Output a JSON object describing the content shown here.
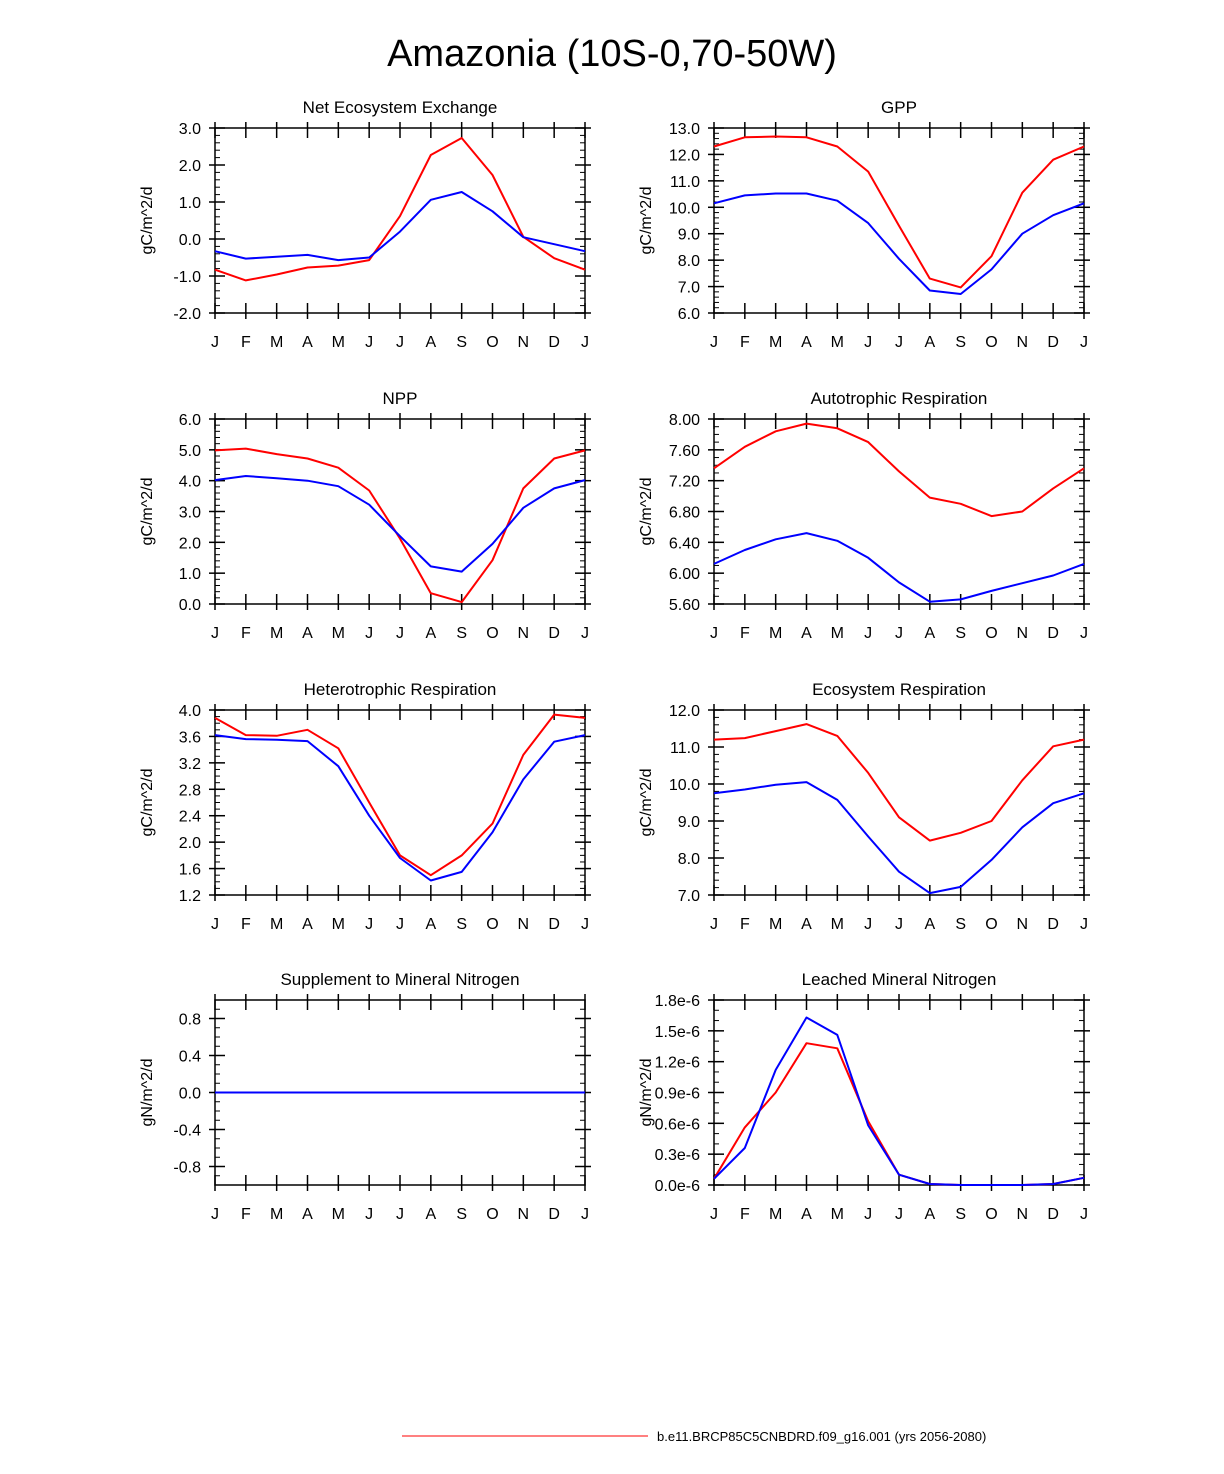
{
  "title": "Amazonia (10S-0,70-50W)",
  "months": [
    "J",
    "F",
    "M",
    "A",
    "M",
    "J",
    "J",
    "A",
    "S",
    "O",
    "N",
    "D",
    "J"
  ],
  "colors": {
    "series1": "#ff0000",
    "series2": "#0000ff",
    "axis": "#000000"
  },
  "legend": {
    "label": "b.e11.BRCP85C5CNBDRD.f09_g16.001 (yrs 2056-2080)"
  },
  "chart_data": [
    {
      "type": "line",
      "title": "Net Ecosystem Exchange",
      "ylabel": "gC/m^2/d",
      "ylim": [
        -2.0,
        3.0
      ],
      "yticks": [
        "-2.0",
        "-1.0",
        "0.0",
        "1.0",
        "2.0",
        "3.0"
      ],
      "ytick_values": [
        -2.0,
        -1.0,
        0.0,
        1.0,
        2.0,
        3.0
      ],
      "minor_step": 0.2,
      "series": [
        {
          "name": "red",
          "values": [
            -0.83,
            -1.12,
            -0.96,
            -0.77,
            -0.72,
            -0.57,
            0.62,
            2.27,
            2.73,
            1.73,
            0.06,
            -0.52,
            -0.83
          ]
        },
        {
          "name": "blue",
          "values": [
            -0.33,
            -0.53,
            -0.48,
            -0.43,
            -0.57,
            -0.5,
            0.2,
            1.06,
            1.27,
            0.75,
            0.05,
            -0.14,
            -0.33
          ]
        }
      ]
    },
    {
      "type": "line",
      "title": "GPP",
      "ylabel": "gC/m^2/d",
      "ylim": [
        6.0,
        13.0
      ],
      "yticks": [
        "6.0",
        "7.0",
        "8.0",
        "9.0",
        "10.0",
        "11.0",
        "12.0",
        "13.0"
      ],
      "ytick_values": [
        6,
        7,
        8,
        9,
        10,
        11,
        12,
        13
      ],
      "minor_step": 0.2,
      "series": [
        {
          "name": "red",
          "values": [
            12.3,
            12.65,
            12.68,
            12.65,
            12.3,
            11.35,
            9.3,
            7.3,
            6.97,
            8.15,
            10.55,
            11.8,
            12.3
          ]
        },
        {
          "name": "blue",
          "values": [
            10.15,
            10.45,
            10.52,
            10.52,
            10.25,
            9.4,
            8.05,
            6.85,
            6.72,
            7.65,
            9.0,
            9.7,
            10.15
          ]
        }
      ]
    },
    {
      "type": "line",
      "title": "NPP",
      "ylabel": "gC/m^2/d",
      "ylim": [
        0.0,
        6.0
      ],
      "yticks": [
        "0.0",
        "1.0",
        "2.0",
        "3.0",
        "4.0",
        "5.0",
        "6.0"
      ],
      "ytick_values": [
        0,
        1,
        2,
        3,
        4,
        5,
        6
      ],
      "minor_step": 0.2,
      "series": [
        {
          "name": "red",
          "values": [
            4.98,
            5.04,
            4.86,
            4.72,
            4.42,
            3.68,
            2.12,
            0.35,
            0.06,
            1.42,
            3.75,
            4.72,
            4.98
          ]
        },
        {
          "name": "blue",
          "values": [
            4.02,
            4.15,
            4.08,
            4.0,
            3.82,
            3.22,
            2.2,
            1.22,
            1.05,
            1.95,
            3.12,
            3.75,
            4.02
          ]
        }
      ]
    },
    {
      "type": "line",
      "title": "Autotrophic Respiration",
      "ylabel": "gC/m^2/d",
      "ylim": [
        5.6,
        8.0
      ],
      "yticks": [
        "5.60",
        "6.00",
        "6.40",
        "6.80",
        "7.20",
        "7.60",
        "8.00"
      ],
      "ytick_values": [
        5.6,
        6.0,
        6.4,
        6.8,
        7.2,
        7.6,
        8.0
      ],
      "minor_step": 0.1,
      "series": [
        {
          "name": "red",
          "values": [
            7.36,
            7.64,
            7.84,
            7.94,
            7.88,
            7.7,
            7.32,
            6.98,
            6.9,
            6.74,
            6.8,
            7.1,
            7.36
          ]
        },
        {
          "name": "blue",
          "values": [
            6.12,
            6.3,
            6.44,
            6.52,
            6.42,
            6.2,
            5.88,
            5.63,
            5.66,
            5.77,
            5.87,
            5.97,
            6.12
          ]
        }
      ]
    },
    {
      "type": "line",
      "title": "Heterotrophic Respiration",
      "ylabel": "gC/m^2/d",
      "ylim": [
        1.2,
        4.0
      ],
      "yticks": [
        "1.2",
        "1.6",
        "2.0",
        "2.4",
        "2.8",
        "3.2",
        "3.6",
        "4.0"
      ],
      "ytick_values": [
        1.2,
        1.6,
        2.0,
        2.4,
        2.8,
        3.2,
        3.6,
        4.0
      ],
      "minor_step": 0.1,
      "series": [
        {
          "name": "red",
          "values": [
            3.88,
            3.62,
            3.61,
            3.7,
            3.42,
            2.6,
            1.8,
            1.5,
            1.8,
            2.28,
            3.32,
            3.93,
            3.88
          ]
        },
        {
          "name": "blue",
          "values": [
            3.62,
            3.56,
            3.55,
            3.53,
            3.15,
            2.4,
            1.76,
            1.42,
            1.55,
            2.15,
            2.95,
            3.52,
            3.62
          ]
        }
      ]
    },
    {
      "type": "line",
      "title": "Ecosystem Respiration",
      "ylabel": "gC/m^2/d",
      "ylim": [
        7.0,
        12.0
      ],
      "yticks": [
        "7.0",
        "8.0",
        "9.0",
        "10.0",
        "11.0",
        "12.0"
      ],
      "ytick_values": [
        7,
        8,
        9,
        10,
        11,
        12
      ],
      "minor_step": 0.2,
      "series": [
        {
          "name": "red",
          "values": [
            11.2,
            11.24,
            11.43,
            11.62,
            11.3,
            10.3,
            9.1,
            8.47,
            8.68,
            9.0,
            10.1,
            11.02,
            11.2
          ]
        },
        {
          "name": "blue",
          "values": [
            9.75,
            9.85,
            9.98,
            10.05,
            9.57,
            8.58,
            7.63,
            7.05,
            7.22,
            7.95,
            8.83,
            9.48,
            9.75
          ]
        }
      ]
    },
    {
      "type": "line",
      "title": "Supplement to Mineral Nitrogen",
      "ylabel": "gN/m^2/d",
      "ylim": [
        -1.0,
        1.0
      ],
      "yticks": [
        "-0.8",
        "-0.4",
        "0.0",
        "0.4",
        "0.8"
      ],
      "ytick_values": [
        -0.8,
        -0.4,
        0.0,
        0.4,
        0.8
      ],
      "minor_step": 0.1,
      "series": [
        {
          "name": "red",
          "values": [
            0,
            0,
            0,
            0,
            0,
            0,
            0,
            0,
            0,
            0,
            0,
            0,
            0
          ]
        },
        {
          "name": "blue",
          "values": [
            0,
            0,
            0,
            0,
            0,
            0,
            0,
            0,
            0,
            0,
            0,
            0,
            0
          ]
        }
      ]
    },
    {
      "type": "line",
      "title": "Leached Mineral Nitrogen",
      "ylabel": "gN/m^2/d",
      "ylim": [
        0.0,
        1.8e-06
      ],
      "yticks": [
        "0.0e-6",
        "0.3e-6",
        "0.6e-6",
        "0.9e-6",
        "1.2e-6",
        "1.5e-6",
        "1.8e-6"
      ],
      "ytick_values": [
        0,
        3e-07,
        6e-07,
        9e-07,
        1.2e-06,
        1.5e-06,
        1.8e-06
      ],
      "minor_step": 1e-07,
      "series": [
        {
          "name": "red",
          "values": [
            6e-08,
            5.6e-07,
            9e-07,
            1.38e-06,
            1.33e-06,
            6.2e-07,
            1e-07,
            1e-08,
            0,
            0,
            0,
            1e-08,
            7e-08
          ]
        },
        {
          "name": "blue",
          "values": [
            6e-08,
            3.6e-07,
            1.12e-06,
            1.63e-06,
            1.46e-06,
            5.8e-07,
            1e-07,
            1e-08,
            0,
            0,
            0,
            1e-08,
            7e-08
          ]
        }
      ]
    }
  ]
}
